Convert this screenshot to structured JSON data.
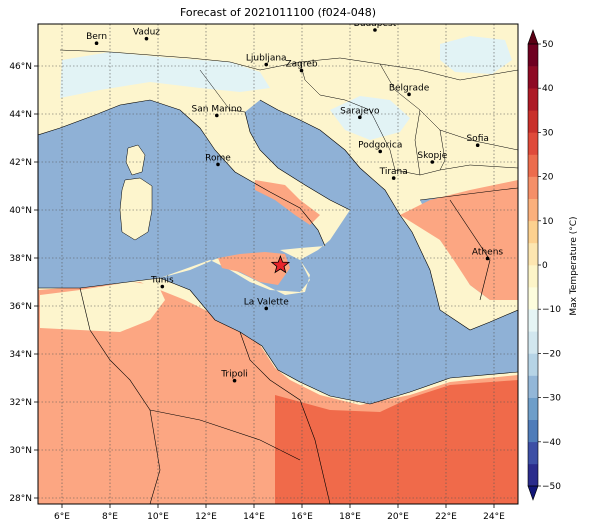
{
  "title": "Forecast of 2021011100 (f024-048)",
  "map": {
    "lon_range": [
      5.0,
      25.0
    ],
    "lat_range": [
      27.75,
      47.75
    ],
    "lon_ticks": [
      "6°E",
      "8°E",
      "10°E",
      "12°E",
      "14°E",
      "16°E",
      "18°E",
      "20°E",
      "22°E",
      "24°E"
    ],
    "lat_ticks": [
      "28°N",
      "30°N",
      "32°N",
      "34°N",
      "36°N",
      "38°N",
      "40°N",
      "42°N",
      "44°N",
      "46°N"
    ],
    "gridlines": true,
    "marker": {
      "name": "star",
      "lon": 15.1,
      "lat": 37.7,
      "color": "#e8252b"
    }
  },
  "cities": [
    {
      "name": "Bern",
      "lon": 7.44,
      "lat": 46.95
    },
    {
      "name": "Vaduz",
      "lon": 9.52,
      "lat": 47.14
    },
    {
      "name": "Budapest",
      "lon": 19.04,
      "lat": 47.5
    },
    {
      "name": "Ljubljana",
      "lon": 14.51,
      "lat": 46.06
    },
    {
      "name": "Zagreb",
      "lon": 15.98,
      "lat": 45.81
    },
    {
      "name": "Belgrade",
      "lon": 20.46,
      "lat": 44.82
    },
    {
      "name": "San Marino",
      "lon": 12.45,
      "lat": 43.94
    },
    {
      "name": "Sarajevo",
      "lon": 18.41,
      "lat": 43.86
    },
    {
      "name": "Sofia",
      "lon": 23.32,
      "lat": 42.7
    },
    {
      "name": "Rome",
      "lon": 12.5,
      "lat": 41.9
    },
    {
      "name": "Podgorica",
      "lon": 19.26,
      "lat": 42.44
    },
    {
      "name": "Skopje",
      "lon": 21.43,
      "lat": 42.0
    },
    {
      "name": "Tirana",
      "lon": 19.82,
      "lat": 41.33
    },
    {
      "name": "Athens",
      "lon": 23.73,
      "lat": 37.98
    },
    {
      "name": "Tunis",
      "lon": 10.18,
      "lat": 36.81
    },
    {
      "name": "La Valette",
      "lon": 14.51,
      "lat": 35.9
    },
    {
      "name": "Tripoli",
      "lon": 13.19,
      "lat": 32.89
    }
  ],
  "colorbar": {
    "label": "Max Temperature (°C)",
    "ticks": [
      "50",
      "40",
      "30",
      "20",
      "10",
      "0",
      "−10",
      "−20",
      "−30",
      "−40",
      "−50"
    ],
    "levels": [
      -50,
      -45,
      -40,
      -35,
      -30,
      -25,
      -20,
      -15,
      -10,
      -5,
      0,
      5,
      10,
      15,
      20,
      25,
      30,
      35,
      40,
      45,
      50
    ],
    "colors": [
      "#2b2c8c",
      "#3d4fa5",
      "#4f7cb9",
      "#6e9ec9",
      "#93b7d8",
      "#b6d4e6",
      "#d2e7ef",
      "#e6f5f5",
      "#fdfddd",
      "#fdf5c8",
      "#fde6b0",
      "#fdd18f",
      "#fbb07c",
      "#f58f68",
      "#ec6c4d",
      "#df4a3a",
      "#c9302b",
      "#ad1a26",
      "#8e0a24",
      "#6e0020"
    ],
    "extend_low": "#131778",
    "extend_high": "#5a0014"
  },
  "colors": {
    "sea": "#8fb1d6",
    "land_mild": "#fdf5cd",
    "land_cold": "#e2f3f5",
    "land_warm": "#fca682",
    "land_hot": "#f06a4a"
  }
}
